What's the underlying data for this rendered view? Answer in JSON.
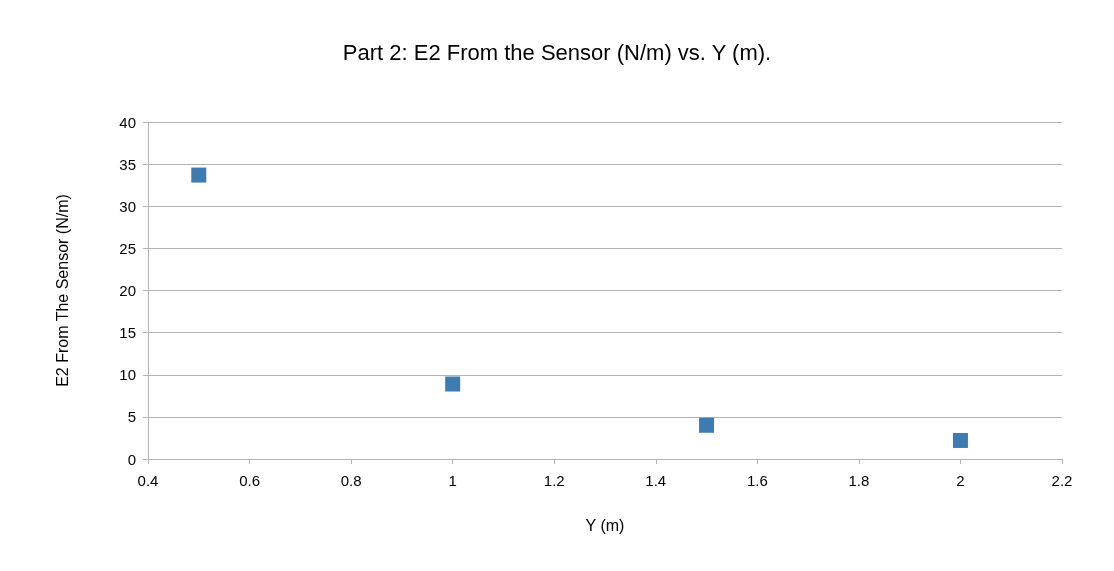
{
  "chart_data": {
    "type": "scatter",
    "title": "Part 2: E2 From the Sensor (N/m) vs. Y (m).",
    "xlabel": "Y (m)",
    "ylabel": "E2 From The Sensor (N/m)",
    "x": [
      0.5,
      1,
      1.5,
      2
    ],
    "series": [
      {
        "color": "#0e5a9c",
        "values": [
          33.7,
          8.9,
          4.0,
          2.2
        ]
      }
    ],
    "xlim": [
      0.4,
      2.2
    ],
    "xticks": [
      0.4,
      0.6,
      0.8,
      1,
      1.2,
      1.4,
      1.6,
      1.8,
      2,
      2.2
    ],
    "ylim": [
      0,
      40
    ],
    "yticks": [
      0,
      5,
      10,
      15,
      20,
      25,
      30,
      35,
      40
    ],
    "grid": "y",
    "marker": "square"
  }
}
